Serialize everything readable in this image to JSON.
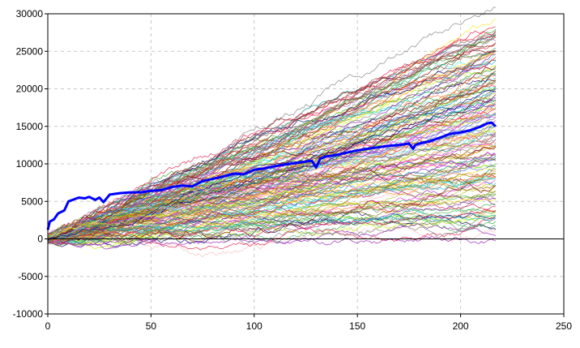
{
  "chart_data": {
    "type": "line",
    "title": "",
    "xlabel": "",
    "ylabel": "",
    "xlim": [
      0,
      250
    ],
    "ylim": [
      -10000,
      30000
    ],
    "x_ticks": [
      "0",
      "50",
      "100",
      "150",
      "200",
      "250"
    ],
    "y_ticks": [
      "30000",
      "25000",
      "20000",
      "15000",
      "10000",
      "5000",
      "0",
      "-5000",
      "-10000"
    ],
    "grid": true,
    "legend": "none",
    "n_simulated_series": 160,
    "simulated_series_x_range": [
      0,
      217
    ],
    "simulated_series_end_range": [
      4500,
      26500
    ],
    "highlight_series": {
      "color": "#0000ff",
      "x": [
        0,
        1,
        3,
        5,
        8,
        10,
        13,
        15,
        18,
        20,
        23,
        25,
        27,
        30,
        35,
        40,
        45,
        50,
        55,
        60,
        65,
        70,
        75,
        80,
        85,
        90,
        95,
        100,
        105,
        110,
        115,
        120,
        125,
        128,
        130,
        132,
        135,
        140,
        145,
        150,
        155,
        160,
        165,
        170,
        175,
        177,
        178,
        180,
        185,
        190,
        195,
        200,
        205,
        210,
        213,
        215,
        217
      ],
      "values": [
        1200,
        2300,
        2600,
        3400,
        3800,
        5000,
        5300,
        5500,
        5400,
        5600,
        5200,
        5500,
        4900,
        5900,
        6100,
        6200,
        6200,
        6400,
        6500,
        6900,
        7100,
        7000,
        7700,
        8000,
        8300,
        8700,
        8600,
        9200,
        9400,
        9700,
        9900,
        10100,
        10300,
        10400,
        9500,
        10700,
        11000,
        11200,
        11500,
        11800,
        12000,
        12200,
        12400,
        12500,
        12700,
        12000,
        12500,
        12700,
        13000,
        13500,
        14000,
        14200,
        14500,
        15000,
        15400,
        15500,
        15000
      ]
    },
    "colors": {
      "axis": "#000000",
      "grid": "#c8c8c8",
      "zero_line": "#000000",
      "highlight": "#0000ff",
      "palette": [
        "#e6194b",
        "#3cb44b",
        "#ffe119",
        "#4363d8",
        "#f58231",
        "#911eb4",
        "#46f0f0",
        "#f032e6",
        "#bcf60c",
        "#fabebe",
        "#008080",
        "#9a6324",
        "#800000",
        "#808000",
        "#000075",
        "#808080",
        "#ff7f0e",
        "#2ca02c",
        "#d62728",
        "#9467bd",
        "#8c564b",
        "#17becf",
        "#bcbd22",
        "#7f7f7f"
      ]
    }
  }
}
